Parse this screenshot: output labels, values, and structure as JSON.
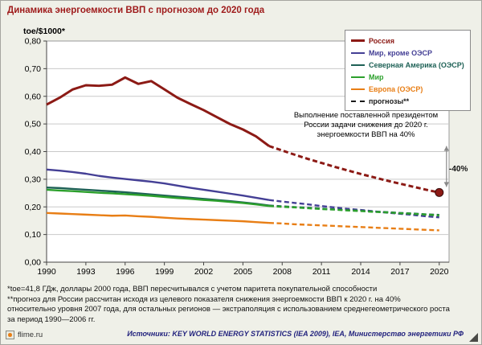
{
  "chart_data": {
    "type": "line",
    "title": "Динамика энергоемкости ВВП с прогнозом до 2020 года",
    "y_axis_label": "toe/$1000*",
    "xlim": [
      1990,
      2020.75
    ],
    "ylim": [
      0,
      0.8
    ],
    "y_tick_step": 0.1,
    "x_ticks": [
      1990,
      1993,
      1996,
      1999,
      2002,
      2005,
      2008,
      2011,
      2014,
      2017,
      2020
    ],
    "y_ticks": [
      "0,00",
      "0,10",
      "0,20",
      "0,30",
      "0,40",
      "0,50",
      "0,60",
      "0,70",
      "0,80"
    ],
    "grid": "horizontal",
    "legend_position": "top-right",
    "forecast_style": "dashed",
    "annotation": "Выполнение поставленной президентом России задачи снижения до 2020 г. энергоемкости ВВП на 40%",
    "drop_arrow": {
      "x": 2020,
      "from": 0.42,
      "to": 0.252,
      "label": "-40%"
    },
    "series": [
      {
        "id": "russia",
        "name": "Россия",
        "color": "#8C1A15",
        "stroke_width": 3,
        "end_marker": true,
        "actual": {
          "start": 1990,
          "values": [
            0.57,
            0.595,
            0.625,
            0.64,
            0.638,
            0.642,
            0.668,
            0.645,
            0.655,
            0.625,
            0.595,
            0.572,
            0.55,
            0.525,
            0.5,
            0.48,
            0.455,
            0.42
          ]
        },
        "forecast": {
          "start": 2007,
          "values": [
            0.42,
            0.404,
            0.388,
            0.373,
            0.359,
            0.345,
            0.332,
            0.319,
            0.307,
            0.295,
            0.284,
            0.273,
            0.262,
            0.252
          ]
        }
      },
      {
        "id": "world-ex-oecd",
        "name": "Мир, кроме ОЭСР",
        "color": "#443F95",
        "stroke_width": 2.4,
        "end_marker": false,
        "actual": {
          "start": 1990,
          "values": [
            0.335,
            0.331,
            0.326,
            0.32,
            0.312,
            0.306,
            0.301,
            0.296,
            0.291,
            0.285,
            0.277,
            0.269,
            0.262,
            0.255,
            0.248,
            0.241,
            0.233,
            0.225
          ]
        },
        "forecast": {
          "start": 2007,
          "values": [
            0.225,
            0.219,
            0.214,
            0.209,
            0.203,
            0.198,
            0.193,
            0.189,
            0.184,
            0.179,
            0.175,
            0.171,
            0.166,
            0.162
          ]
        }
      },
      {
        "id": "north-america-oecd",
        "name": "Северная Америка (ОЭСР)",
        "color": "#1E6156",
        "stroke_width": 2.4,
        "end_marker": false,
        "actual": {
          "start": 1990,
          "values": [
            0.27,
            0.268,
            0.265,
            0.262,
            0.259,
            0.256,
            0.253,
            0.249,
            0.245,
            0.241,
            0.237,
            0.233,
            0.229,
            0.225,
            0.221,
            0.216,
            0.211,
            0.205
          ]
        },
        "forecast": {
          "start": 2007,
          "values": [
            0.205,
            0.202,
            0.199,
            0.197,
            0.194,
            0.191,
            0.188,
            0.186,
            0.183,
            0.181,
            0.178,
            0.176,
            0.173,
            0.171
          ]
        }
      },
      {
        "id": "world",
        "name": "Мир",
        "color": "#2CA02C",
        "stroke_width": 2.4,
        "end_marker": false,
        "actual": {
          "start": 1990,
          "values": [
            0.262,
            0.259,
            0.257,
            0.254,
            0.251,
            0.249,
            0.246,
            0.243,
            0.24,
            0.236,
            0.232,
            0.229,
            0.225,
            0.222,
            0.218,
            0.214,
            0.209,
            0.203
          ]
        },
        "forecast": {
          "start": 2007,
          "values": [
            0.203,
            0.2,
            0.198,
            0.195,
            0.192,
            0.19,
            0.187,
            0.185,
            0.182,
            0.18,
            0.177,
            0.175,
            0.172,
            0.169
          ]
        }
      },
      {
        "id": "europe-oecd",
        "name": "Европа (ОЭСР)",
        "color": "#E87E15",
        "stroke_width": 2.4,
        "end_marker": false,
        "actual": {
          "start": 1990,
          "values": [
            0.178,
            0.176,
            0.174,
            0.172,
            0.17,
            0.168,
            0.169,
            0.166,
            0.164,
            0.161,
            0.158,
            0.156,
            0.154,
            0.152,
            0.15,
            0.148,
            0.145,
            0.142
          ]
        },
        "forecast": {
          "start": 2007,
          "values": [
            0.142,
            0.14,
            0.137,
            0.135,
            0.133,
            0.131,
            0.129,
            0.127,
            0.125,
            0.123,
            0.121,
            0.119,
            0.117,
            0.115
          ]
        }
      }
    ]
  },
  "legend": {
    "items": [
      {
        "label": "Россия",
        "color": "#8C1A15",
        "dashed": false,
        "thick": true
      },
      {
        "label": "Мир, кроме ОЭСР",
        "color": "#443F95",
        "dashed": false,
        "thick": false
      },
      {
        "label": "Северная Америка (ОЭСР)",
        "color": "#1E6156",
        "dashed": false,
        "thick": false
      },
      {
        "label": "Мир",
        "color": "#2CA02C",
        "dashed": false,
        "thick": false
      },
      {
        "label": "Европа (ОЭСР)",
        "color": "#E87E15",
        "dashed": false,
        "thick": false
      },
      {
        "label": "прогнозы**",
        "color": "#1A1A1A",
        "dashed": true,
        "thick": false
      }
    ]
  },
  "footnotes": {
    "lines": [
      "*toe=41,8 ГДж, доллары 2000 года, ВВП пересчитывался с учетом паритета покупательной способности",
      "**прогноз для России рассчитан исходя из целевого показателя снижения энергоемкости ВВП к 2020 г. на 40%",
      "относительно уровня 2007 года, для остальных регионов — экстраполяция с использованием среднегеометрического роста",
      "за период 1990—2006 гг."
    ]
  },
  "source": {
    "text": "Источники: KEY WORLD ENERGY STATISTICS (IEA 2009), IEA, Министерство энергетики РФ"
  },
  "watermark": {
    "text": "flime.ru"
  },
  "colors": {
    "accent_red": "#9E1A1A",
    "background": "#EFF0E8",
    "grid": "#C9C9C9",
    "source_blue": "#23237E"
  }
}
